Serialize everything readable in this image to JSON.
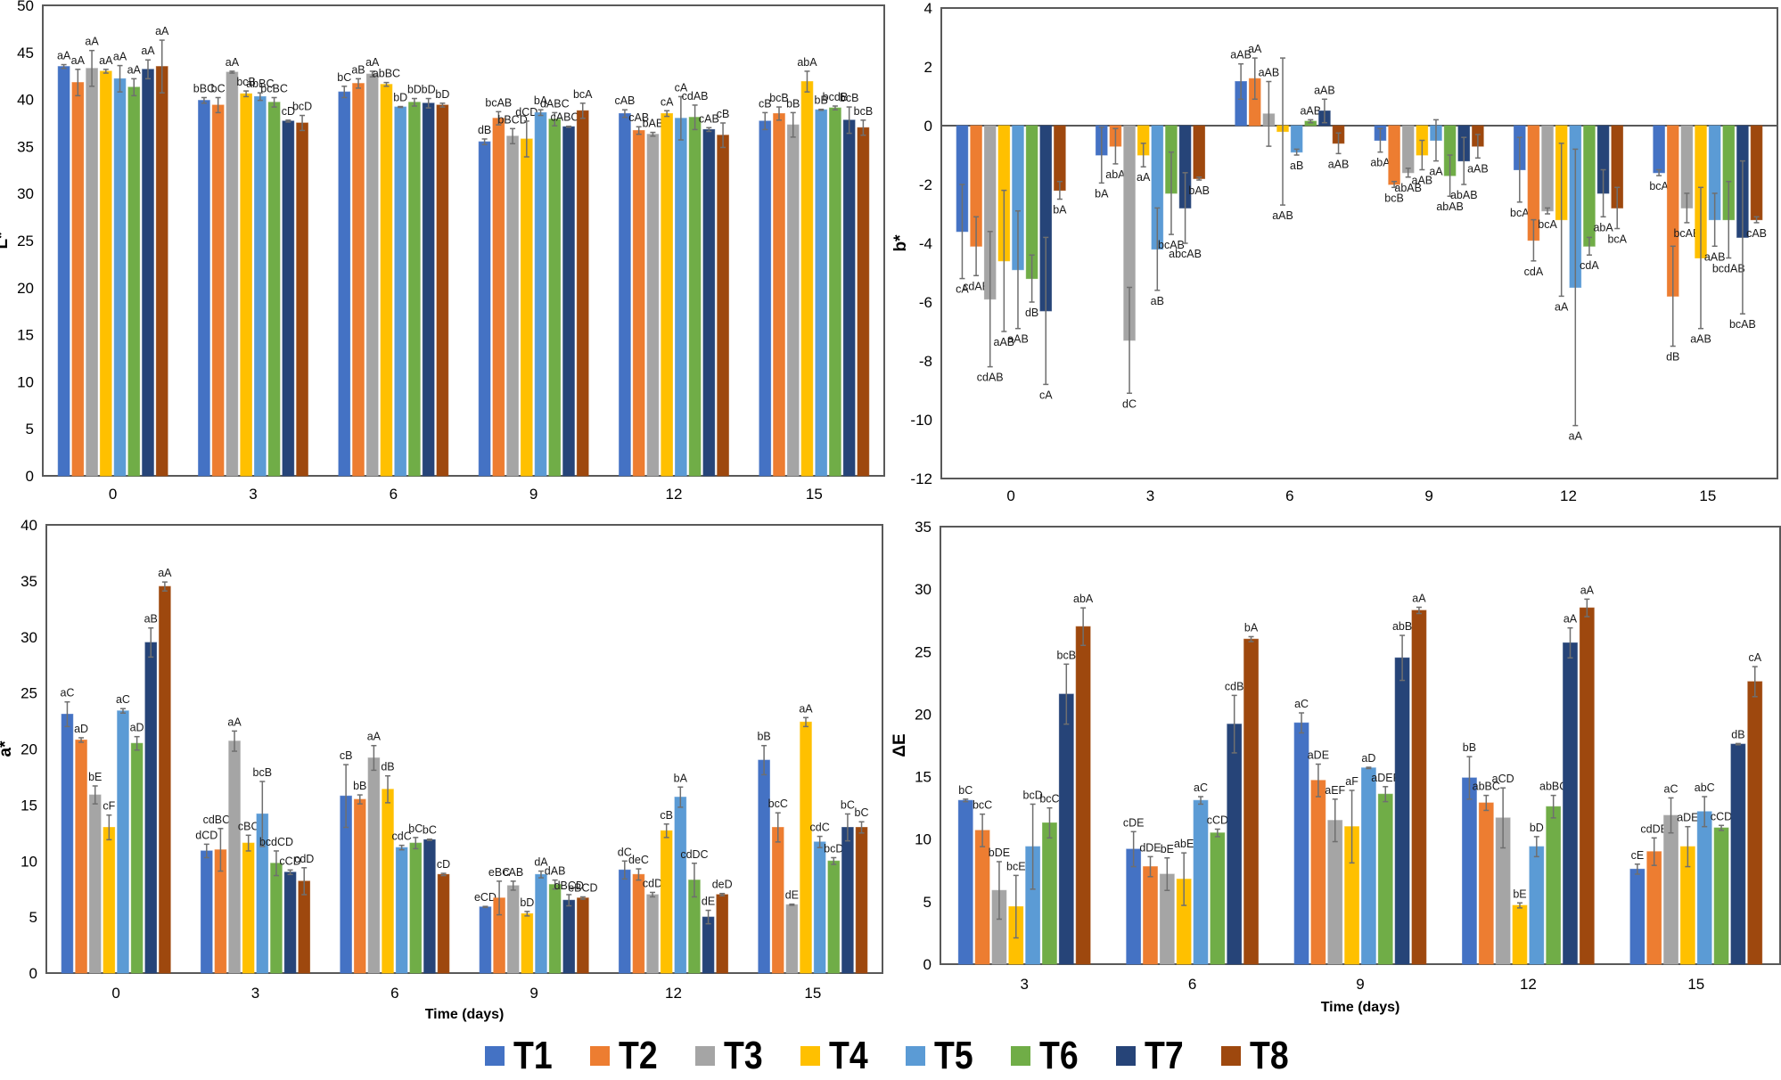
{
  "figure": {
    "legend": {
      "entries": [
        {
          "name": "T1",
          "color": "#4472C4"
        },
        {
          "name": "T2",
          "color": "#ED7D31"
        },
        {
          "name": "T3",
          "color": "#A5A5A5"
        },
        {
          "name": "T4",
          "color": "#FFC000"
        },
        {
          "name": "T5",
          "color": "#5B9BD5"
        },
        {
          "name": "T6",
          "color": "#70AD47"
        },
        {
          "name": "T7",
          "color": "#264478"
        },
        {
          "name": "T8",
          "color": "#9E480E"
        }
      ],
      "placement": "bottom-center"
    }
  },
  "chart_data": [
    {
      "id": "L",
      "type": "bar",
      "title": "",
      "xlabel": "",
      "ylabel": "L*",
      "ylim": [
        0,
        50
      ],
      "yticks": [
        0,
        5,
        10,
        15,
        20,
        25,
        30,
        35,
        40,
        45,
        50
      ],
      "grid": false,
      "categories": [
        "0",
        "3",
        "6",
        "9",
        "12",
        "15"
      ],
      "series": [
        {
          "name": "T1",
          "values": [
            43.5,
            39.9,
            40.8,
            35.5,
            38.5,
            37.7
          ],
          "errors": [
            0.2,
            0.3,
            0.6,
            0.3,
            0.4,
            0.9
          ],
          "labels": [
            "aA",
            "bBC",
            "bC",
            "dB",
            "cAB",
            "cB"
          ]
        },
        {
          "name": "T2",
          "values": [
            41.8,
            39.4,
            41.7,
            38.0,
            36.7,
            38.5
          ],
          "errors": [
            1.4,
            0.8,
            0.5,
            0.7,
            0.4,
            0.7
          ],
          "labels": [
            "aA",
            "bC",
            "aB",
            "bcAB",
            "cAB",
            "bcB"
          ]
        },
        {
          "name": "T3",
          "values": [
            43.3,
            42.9,
            42.7,
            36.1,
            36.3,
            37.3
          ],
          "errors": [
            1.9,
            0.1,
            0.3,
            0.8,
            0.2,
            1.3
          ],
          "labels": [
            "aA",
            "aA",
            "aA",
            "bBCD",
            "bAB",
            "bB"
          ]
        },
        {
          "name": "T4",
          "values": [
            43.0,
            40.6,
            41.6,
            35.8,
            38.5,
            41.9
          ],
          "errors": [
            0.2,
            0.3,
            0.2,
            1.9,
            0.3,
            1.1
          ],
          "labels": [
            "aA",
            "bcB",
            "abBC",
            "dCD",
            "cA",
            "abA"
          ]
        },
        {
          "name": "T5",
          "values": [
            42.2,
            40.3,
            39.2,
            38.6,
            38.0,
            38.9
          ],
          "errors": [
            1.4,
            0.4,
            0.05,
            0.3,
            2.3,
            0.05
          ],
          "labels": [
            "aA",
            "abBC",
            "bD",
            "bA",
            "cA",
            "bB"
          ]
        },
        {
          "name": "T6",
          "values": [
            41.3,
            39.7,
            39.7,
            37.9,
            38.1,
            39.1
          ],
          "errors": [
            0.9,
            0.5,
            0.4,
            0.7,
            1.3,
            0.2
          ],
          "labels": [
            "aA",
            "bcBC",
            "bD",
            "dABC",
            "cdAB",
            "bcdB"
          ]
        },
        {
          "name": "T7",
          "values": [
            43.2,
            37.7,
            39.6,
            37.1,
            36.8,
            37.8
          ],
          "errors": [
            1.0,
            0.1,
            0.5,
            0.05,
            0.2,
            1.4
          ],
          "labels": [
            "aA",
            "cD",
            "bD",
            "cABCD",
            "cAB",
            "bcB"
          ]
        },
        {
          "name": "T8",
          "values": [
            43.5,
            37.5,
            39.4,
            38.8,
            36.2,
            37.0
          ],
          "errors": [
            2.8,
            0.8,
            0.2,
            0.8,
            1.3,
            0.8
          ],
          "labels": [
            "aA",
            "bcD",
            "bD",
            "bcA",
            "cB",
            "bcB"
          ]
        }
      ]
    },
    {
      "id": "b",
      "type": "bar",
      "title": "",
      "xlabel": "",
      "ylabel": "b*",
      "ylim": [
        -12,
        4
      ],
      "yticks": [
        -12,
        -10,
        -8,
        -6,
        -4,
        -2,
        0,
        2,
        4
      ],
      "grid": false,
      "categories": [
        "0",
        "3",
        "6",
        "9",
        "12",
        "15"
      ],
      "series": [
        {
          "name": "T1",
          "values": [
            -3.6,
            -1.0,
            1.5,
            -0.5,
            -1.5,
            -1.6
          ],
          "errors": [
            1.6,
            0.95,
            0.6,
            0.4,
            1.1,
            0.1
          ],
          "labels": [
            "cA",
            "bA",
            "aAB",
            "abA",
            "bcA",
            "bcA"
          ]
        },
        {
          "name": "T2",
          "values": [
            -4.1,
            -0.7,
            1.6,
            -2.0,
            -3.9,
            -5.8
          ],
          "errors": [
            1.0,
            0.6,
            0.7,
            0.1,
            0.7,
            1.7
          ],
          "labels": [
            "cdAB",
            "abA",
            "aA",
            "bcB",
            "cdA",
            "dB"
          ]
        },
        {
          "name": "T3",
          "values": [
            -5.9,
            -7.3,
            0.4,
            -1.6,
            -2.9,
            -2.8
          ],
          "errors": [
            2.3,
            1.8,
            1.1,
            0.15,
            0.1,
            0.5
          ],
          "labels": [
            "cdAB",
            "dC",
            "aAB",
            "abAB",
            "bcA",
            "bcAB"
          ]
        },
        {
          "name": "T4",
          "values": [
            -4.6,
            -1.0,
            -0.2,
            -1.0,
            -3.2,
            -4.5
          ],
          "errors": [
            2.4,
            0.4,
            2.5,
            0.5,
            2.6,
            2.4
          ],
          "labels": [
            "aAB",
            "aA",
            "aAB",
            "aAB",
            "aA",
            "aAB"
          ]
        },
        {
          "name": "T5",
          "values": [
            -4.9,
            -4.2,
            -0.9,
            -0.5,
            -5.5,
            -3.2
          ],
          "errors": [
            2.0,
            1.4,
            0.1,
            0.7,
            4.7,
            0.9
          ],
          "labels": [
            "aAB",
            "aB",
            "aB",
            "aA",
            "aA",
            "aAB"
          ]
        },
        {
          "name": "T6",
          "values": [
            -5.2,
            -2.3,
            0.15,
            -1.7,
            -4.1,
            -3.2
          ],
          "errors": [
            0.8,
            1.4,
            0.05,
            0.7,
            0.3,
            1.3
          ],
          "labels": [
            "dB",
            "bcAB",
            "aAB",
            "abAB",
            "cdA",
            "bcdAB"
          ]
        },
        {
          "name": "T7",
          "values": [
            -6.3,
            -2.8,
            0.5,
            -1.2,
            -2.3,
            -3.8
          ],
          "errors": [
            2.5,
            1.2,
            0.4,
            0.8,
            0.8,
            2.6
          ],
          "labels": [
            "cA",
            "abcAB",
            "aAB",
            "abAB",
            "abA",
            "bcAB"
          ]
        },
        {
          "name": "T8",
          "values": [
            -2.2,
            -1.8,
            -0.6,
            -0.7,
            -2.8,
            -3.2
          ],
          "errors": [
            0.3,
            0.05,
            0.35,
            0.4,
            0.7,
            0.1
          ],
          "labels": [
            "bA",
            "bAB",
            "aAB",
            "aAB",
            "bcA",
            "cAB"
          ]
        }
      ]
    },
    {
      "id": "a",
      "type": "bar",
      "title": "",
      "xlabel": "Time (days)",
      "ylabel": "a*",
      "ylim": [
        0,
        40
      ],
      "yticks": [
        0,
        5,
        10,
        15,
        20,
        25,
        30,
        35,
        40
      ],
      "grid": false,
      "categories": [
        "0",
        "3",
        "6",
        "9",
        "12",
        "15"
      ],
      "series": [
        {
          "name": "T1",
          "values": [
            23.1,
            10.9,
            15.8,
            5.9,
            9.2,
            19.0
          ],
          "errors": [
            1.1,
            0.6,
            2.8,
            0.05,
            0.8,
            1.3
          ],
          "labels": [
            "aC",
            "dCD",
            "cB",
            "eCD",
            "dC",
            "bB"
          ]
        },
        {
          "name": "T2",
          "values": [
            20.8,
            11.0,
            15.5,
            6.7,
            8.8,
            13.0
          ],
          "errors": [
            0.2,
            1.9,
            0.4,
            1.5,
            0.5,
            1.3
          ],
          "labels": [
            "aD",
            "cdBCD",
            "bB",
            "eBC",
            "deC",
            "bcC"
          ]
        },
        {
          "name": "T3",
          "values": [
            15.9,
            20.7,
            19.2,
            7.8,
            7.0,
            6.1
          ],
          "errors": [
            0.8,
            0.9,
            1.1,
            0.4,
            0.2,
            0.05
          ],
          "labels": [
            "bE",
            "aA",
            "aA",
            "cAB",
            "cdD",
            "dE"
          ]
        },
        {
          "name": "T4",
          "values": [
            13.0,
            11.6,
            16.4,
            5.3,
            12.7,
            22.4
          ],
          "errors": [
            1.1,
            0.7,
            1.2,
            0.2,
            0.6,
            0.4
          ],
          "labels": [
            "cF",
            "cBC",
            "dB",
            "bD",
            "cB",
            "aA"
          ]
        },
        {
          "name": "T5",
          "values": [
            23.4,
            14.2,
            11.2,
            8.8,
            15.7,
            11.7
          ],
          "errors": [
            0.2,
            2.9,
            0.2,
            0.3,
            0.9,
            0.5
          ],
          "labels": [
            "aC",
            "bcB",
            "cdC",
            "dA",
            "bA",
            "cdC"
          ]
        },
        {
          "name": "T6",
          "values": [
            20.5,
            9.8,
            11.6,
            7.9,
            8.3,
            10.0
          ],
          "errors": [
            0.6,
            1.1,
            0.5,
            0.4,
            1.5,
            0.3
          ],
          "labels": [
            "aD",
            "bcdCD",
            "bC",
            "dAB",
            "cdDC",
            "bcD"
          ]
        },
        {
          "name": "T7",
          "values": [
            29.5,
            9.0,
            11.9,
            6.5,
            5.0,
            13.0
          ],
          "errors": [
            1.3,
            0.2,
            0.05,
            0.5,
            0.6,
            1.2
          ],
          "labels": [
            "aB",
            "cCD",
            "bC",
            "dBCD",
            "dE",
            "bC"
          ]
        },
        {
          "name": "T8",
          "values": [
            34.5,
            8.2,
            8.8,
            6.7,
            7.0,
            13.0
          ],
          "errors": [
            0.4,
            1.2,
            0.1,
            0.1,
            0.1,
            0.5
          ],
          "labels": [
            "aA",
            "cdD",
            "cD",
            "eBCD",
            "deD",
            "bC"
          ]
        }
      ]
    },
    {
      "id": "dE",
      "type": "bar",
      "title": "",
      "xlabel": "Time (days)",
      "ylabel": "ΔE",
      "ylim": [
        0,
        35
      ],
      "yticks": [
        0,
        5,
        10,
        15,
        20,
        25,
        30,
        35
      ],
      "grid": false,
      "categories": [
        "3",
        "6",
        "9",
        "12",
        "15"
      ],
      "series": [
        {
          "name": "T1",
          "values": [
            13.1,
            9.2,
            19.3,
            14.9,
            7.6
          ],
          "errors": [
            0.1,
            1.4,
            0.8,
            1.7,
            0.4
          ],
          "labels": [
            "bC",
            "cDE",
            "aC",
            "bB",
            "cE"
          ]
        },
        {
          "name": "T2",
          "values": [
            10.7,
            7.8,
            14.7,
            12.9,
            9.0
          ],
          "errors": [
            1.3,
            0.8,
            1.3,
            0.6,
            1.1
          ],
          "labels": [
            "bcC",
            "dDE",
            "aDE",
            "abBC",
            "cdDE"
          ]
        },
        {
          "name": "T3",
          "values": [
            5.9,
            7.2,
            11.5,
            11.7,
            11.9
          ],
          "errors": [
            2.3,
            1.3,
            1.7,
            2.4,
            1.4
          ],
          "labels": [
            "bDE",
            "bE",
            "aEF",
            "aCD",
            "aC"
          ]
        },
        {
          "name": "T4",
          "values": [
            4.6,
            6.8,
            11.0,
            4.7,
            9.4
          ],
          "errors": [
            2.5,
            2.1,
            2.9,
            0.2,
            1.6
          ],
          "labels": [
            "bcE",
            "abE",
            "aF",
            "bE",
            "aDE"
          ]
        },
        {
          "name": "T5",
          "values": [
            9.4,
            13.1,
            15.7,
            9.4,
            12.2
          ],
          "errors": [
            3.4,
            0.3,
            0.05,
            0.8,
            1.2
          ],
          "labels": [
            "bcD",
            "aC",
            "aD",
            "bD",
            "abC"
          ]
        },
        {
          "name": "T6",
          "values": [
            11.3,
            10.5,
            13.6,
            12.6,
            10.9
          ],
          "errors": [
            1.2,
            0.3,
            0.6,
            0.9,
            0.2
          ],
          "labels": [
            "bcC",
            "cCD",
            "aDEF",
            "abBC",
            "cCD"
          ]
        },
        {
          "name": "T7",
          "values": [
            21.6,
            19.2,
            24.5,
            25.7,
            17.6
          ],
          "errors": [
            2.4,
            2.3,
            1.8,
            1.2,
            0.05
          ],
          "labels": [
            "bcB",
            "cdB",
            "abB",
            "aA",
            "dB"
          ]
        },
        {
          "name": "T8",
          "values": [
            27.0,
            26.0,
            28.3,
            28.5,
            22.6
          ],
          "errors": [
            1.5,
            0.2,
            0.25,
            0.7,
            1.2
          ],
          "labels": [
            "abA",
            "bA",
            "aA",
            "aA",
            "cA"
          ]
        }
      ]
    }
  ]
}
